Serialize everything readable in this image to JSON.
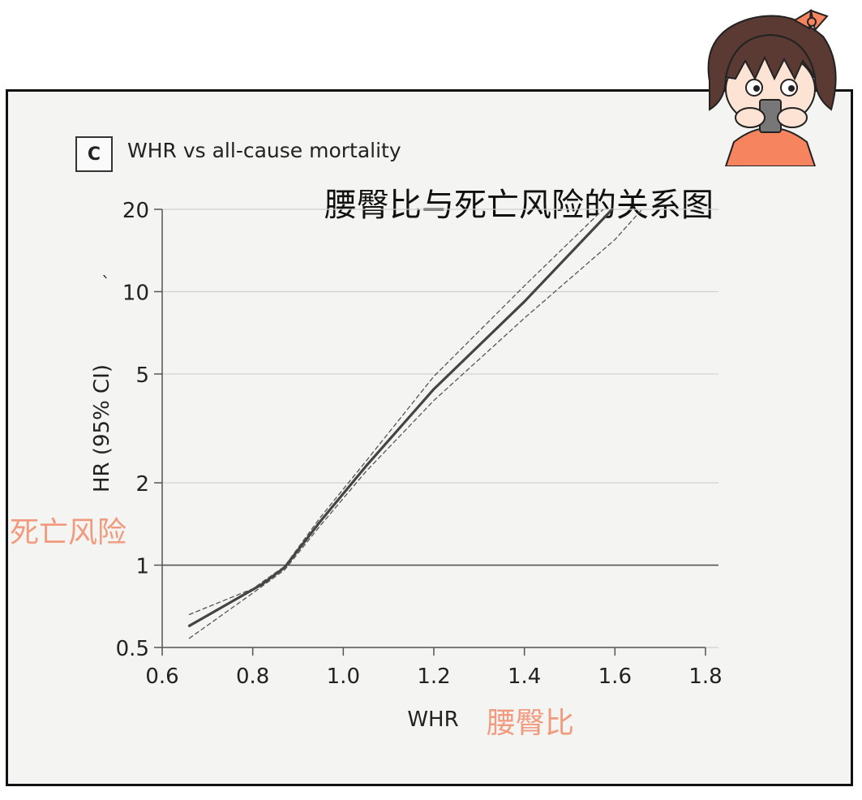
{
  "panel_letter": "C",
  "annotations": {
    "cn_title": "腰臀比与死亡风险的关系图",
    "cn_ylabel": "死亡风险",
    "cn_xlabel": "腰臀比",
    "stray_mark": "`"
  },
  "colors": {
    "line": "#444444",
    "ci": "#555555",
    "grid": "#cfcfcf",
    "refline": "#555555",
    "annotation": "#f29a7e",
    "frame": "#111111"
  },
  "chart_data": {
    "type": "line",
    "title": "WHR vs all-cause mortality",
    "xlabel": "WHR",
    "ylabel": "HR (95% CI)",
    "xlim": [
      0.6,
      1.8
    ],
    "ylim": [
      0.5,
      20
    ],
    "yscale": "log",
    "xticks": [
      "0.6",
      "0.8",
      "1.0",
      "1.2",
      "1.4",
      "1.6",
      "1.8"
    ],
    "yticks": [
      "0.5",
      "1",
      "2",
      "5",
      "10",
      "20"
    ],
    "grid": "horizontal",
    "reference_line": 1,
    "series": [
      {
        "role": "estimate",
        "x": [
          0.66,
          0.75,
          0.82,
          0.87,
          0.95,
          1.05,
          1.2,
          1.4,
          1.6
        ],
        "y": [
          0.6,
          0.73,
          0.85,
          0.98,
          1.45,
          2.3,
          4.4,
          9.2,
          20.5
        ]
      },
      {
        "role": "ci-upper",
        "x": [
          0.66,
          0.8,
          0.87,
          0.95,
          1.05,
          1.2,
          1.4,
          1.6
        ],
        "y": [
          0.66,
          0.82,
          0.99,
          1.5,
          2.4,
          4.9,
          10.5,
          22
        ]
      },
      {
        "role": "ci-lower",
        "x": [
          0.66,
          0.8,
          0.87,
          0.95,
          1.05,
          1.2,
          1.4,
          1.6,
          1.66
        ],
        "y": [
          0.54,
          0.79,
          0.96,
          1.4,
          2.2,
          4.0,
          8.0,
          15.5,
          20
        ]
      }
    ]
  }
}
